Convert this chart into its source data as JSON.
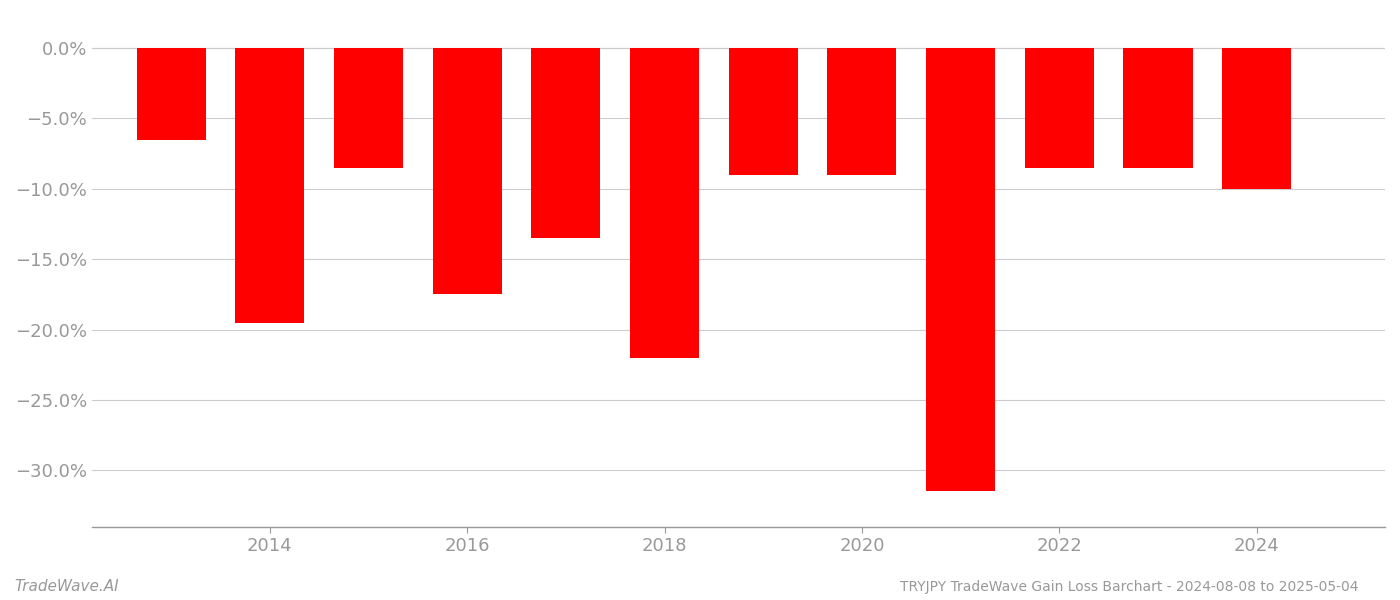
{
  "years": [
    2013,
    2014,
    2015,
    2016,
    2017,
    2018,
    2019,
    2020,
    2021,
    2022,
    2023,
    2024
  ],
  "values": [
    -6.5,
    -19.5,
    -8.5,
    -17.5,
    -13.5,
    -22.0,
    -9.0,
    -9.0,
    -31.5,
    -8.5,
    -8.5,
    -10.0
  ],
  "bar_color": "#ff0000",
  "background_color": "#ffffff",
  "tick_color": "#999999",
  "grid_color": "#cccccc",
  "axis_color": "#999999",
  "title": "TRYJPY TradeWave Gain Loss Barchart - 2024-08-08 to 2025-05-04",
  "watermark": "TradeWave.AI",
  "ylim_min": -34.0,
  "ylim_max": 1.5,
  "yticks": [
    0.0,
    -5.0,
    -10.0,
    -15.0,
    -20.0,
    -25.0,
    -30.0
  ],
  "xticks": [
    2014,
    2016,
    2018,
    2020,
    2022,
    2024
  ],
  "xlim_min": 2012.2,
  "xlim_max": 2025.3,
  "bar_width": 0.7
}
